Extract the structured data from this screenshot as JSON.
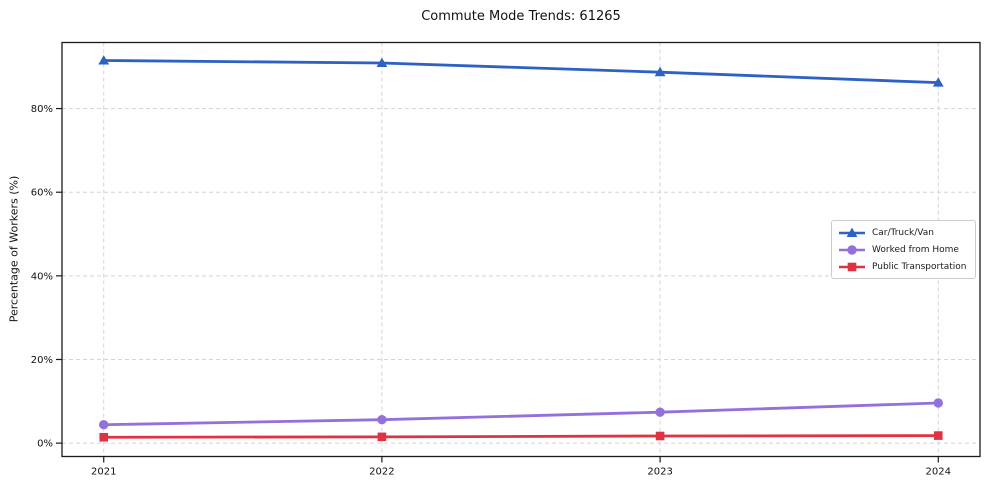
{
  "chart_data": {
    "type": "line",
    "title": "Commute Mode Trends: 61265",
    "xlabel": "",
    "ylabel": "Percentage of Workers (%)",
    "x": [
      2021,
      2022,
      2023,
      2024
    ],
    "x_tick_labels": [
      "2021",
      "2022",
      "2023",
      "2024"
    ],
    "y_ticks": [
      0,
      20,
      40,
      60,
      80
    ],
    "y_tick_labels": [
      "0%",
      "20%",
      "40%",
      "60%",
      "80%"
    ],
    "xlim": [
      2020.85,
      2024.15
    ],
    "ylim": [
      -3.2,
      95.8
    ],
    "grid": true,
    "grid_style": "dashed",
    "legend_position": "center-right",
    "series": [
      {
        "name": "Car/Truck/Van",
        "color": "#2d62c4",
        "marker": "triangle",
        "values": [
          91.5,
          90.9,
          88.7,
          86.2
        ]
      },
      {
        "name": "Worked from Home",
        "color": "#9370db",
        "marker": "circle",
        "values": [
          4.4,
          5.6,
          7.4,
          9.6
        ]
      },
      {
        "name": "Public Transportation",
        "color": "#dd3342",
        "marker": "square",
        "values": [
          1.4,
          1.5,
          1.7,
          1.8
        ]
      }
    ]
  },
  "colors": {
    "background": "#ffffff",
    "spine": "#1a1a1a",
    "grid": "#d4d4d4",
    "tick_text": "#111111",
    "legend_border": "#cccccc"
  }
}
